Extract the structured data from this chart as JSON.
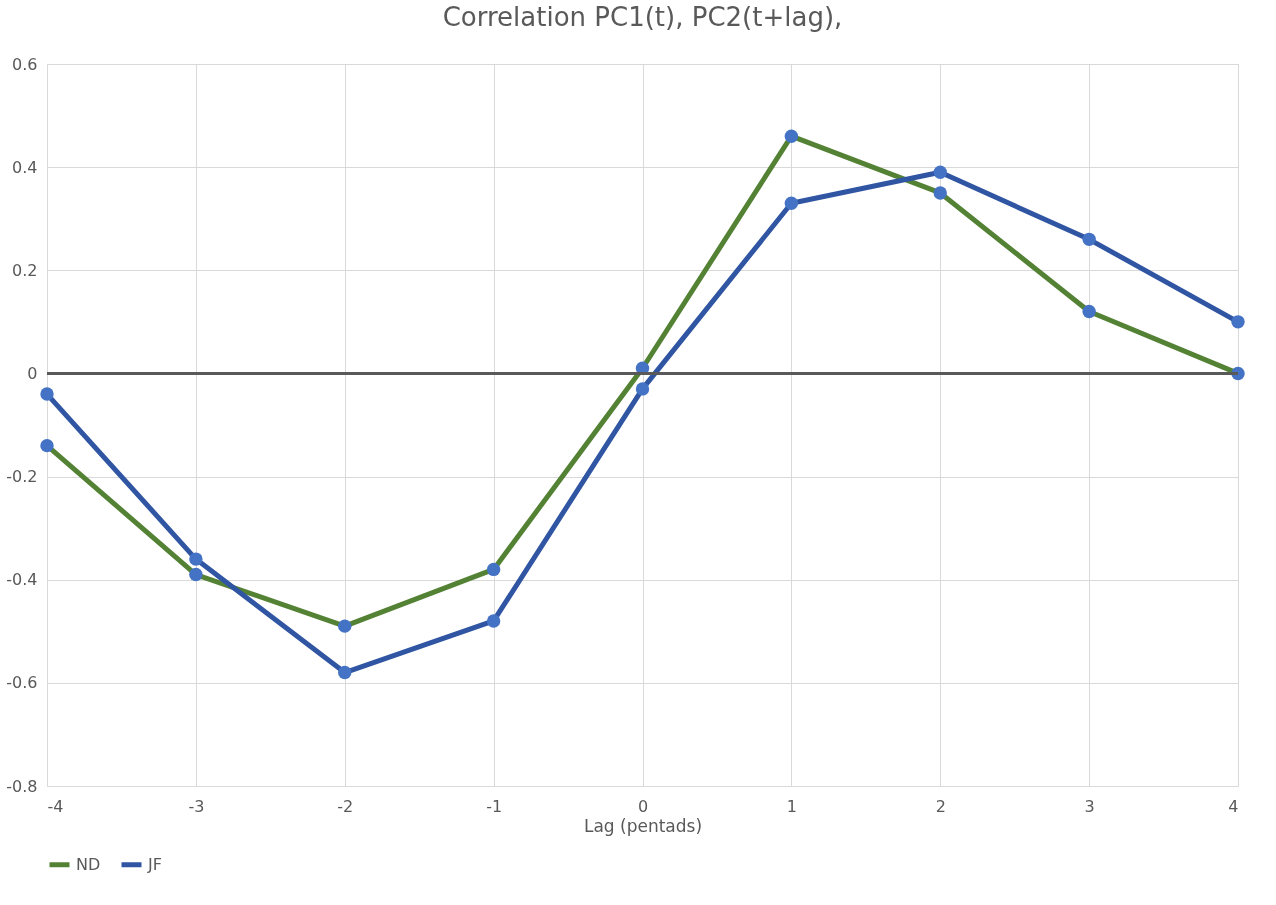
{
  "chart_data": {
    "type": "line",
    "title": "Correlation PC1(t), PC2(t+lag),",
    "xlabel": "Lag (pentads)",
    "x": [
      -4,
      -3,
      -2,
      -1,
      0,
      1,
      2,
      3,
      4
    ],
    "series": [
      {
        "name": "ND",
        "color": "#548235",
        "values": [
          -0.14,
          -0.39,
          -0.49,
          -0.38,
          0.01,
          0.46,
          0.35,
          0.12,
          0.0
        ]
      },
      {
        "name": "JF",
        "color": "#2f55a3",
        "values": [
          -0.04,
          -0.36,
          -0.58,
          -0.48,
          -0.03,
          0.33,
          0.39,
          0.26,
          0.1
        ]
      }
    ],
    "xlim": [
      -4,
      4
    ],
    "xticks": [
      -4,
      -3,
      -2,
      -1,
      0,
      1,
      2,
      3,
      4
    ],
    "ylim": [
      -0.8,
      0.6
    ],
    "yticks": [
      -0.8,
      -0.6,
      -0.4,
      -0.2,
      0,
      0.2,
      0.4,
      0.6
    ],
    "ref_lines": [
      {
        "axis": "y",
        "value": 0,
        "label": null,
        "color": "#595959"
      }
    ],
    "grid": true,
    "legend": "bottom",
    "marker": "circle",
    "line_style": "solid"
  }
}
